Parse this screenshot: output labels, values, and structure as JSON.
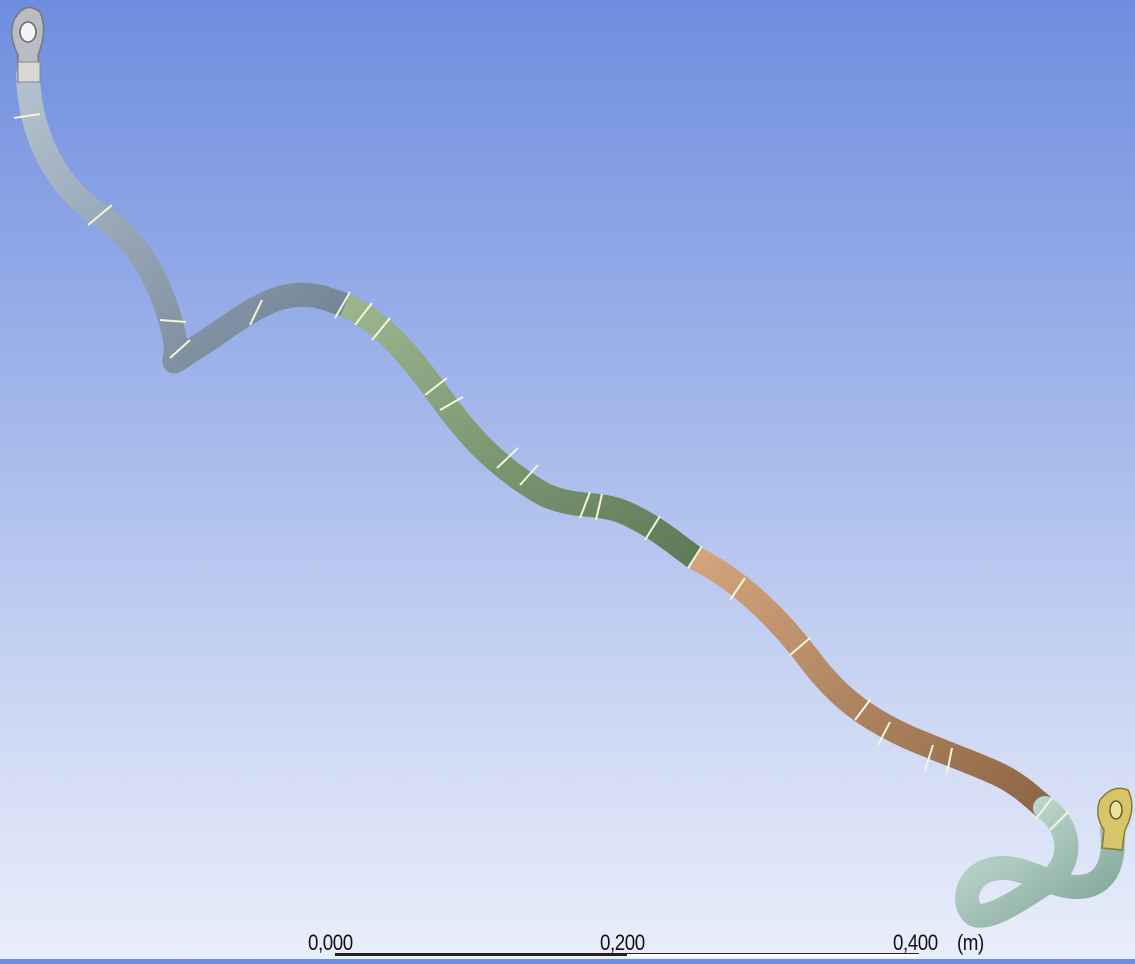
{
  "viewport": {
    "background_top": "#6e8ddf",
    "background_bottom": "#eaeefb",
    "model": {
      "sections": [
        {
          "name": "cable-segment-gray",
          "color": "#8a9cad"
        },
        {
          "name": "cable-segment-green",
          "color": "#7f9b73"
        },
        {
          "name": "cable-segment-orange",
          "color": "#b98a64"
        },
        {
          "name": "cable-segment-lightgreen",
          "color": "#a6c9bd"
        }
      ],
      "terminals": [
        {
          "name": "ring-terminal-start",
          "color": "#c9c9c9"
        },
        {
          "name": "ring-terminal-end",
          "color": "#d8c46a"
        }
      ],
      "joint_line_color": "#f3f6d8"
    }
  },
  "scale": {
    "labels": [
      "0,000",
      "0,200",
      "0,400"
    ],
    "unit": "(m)"
  }
}
